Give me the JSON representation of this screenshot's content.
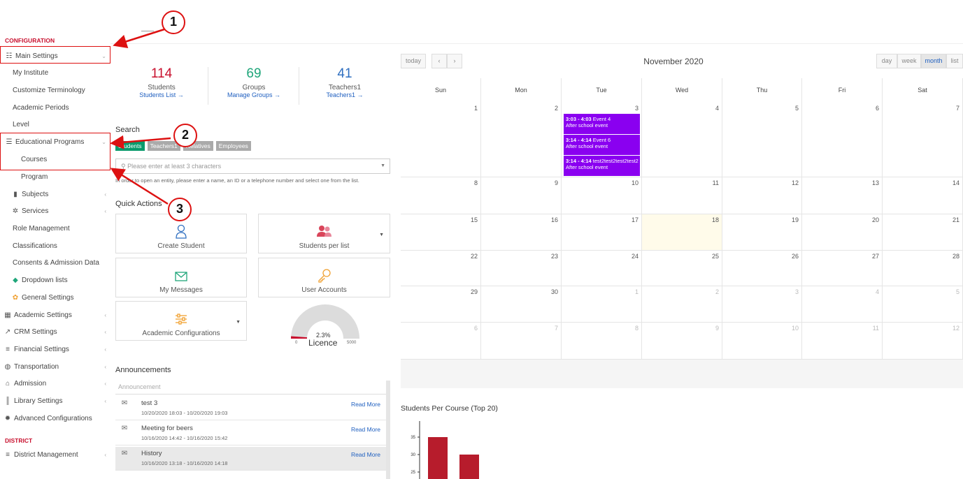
{
  "sidebar": {
    "section_config": "CONFIGURATION",
    "items": [
      {
        "label": "Main Settings",
        "icon": "sliders-icon"
      },
      {
        "label": "My Institute"
      },
      {
        "label": "Customize Terminology"
      },
      {
        "label": "Academic Periods"
      },
      {
        "label": "Level"
      },
      {
        "label": "Educational Programs",
        "icon": "list-icon"
      },
      {
        "label": "Courses"
      },
      {
        "label": "Program"
      },
      {
        "label": "Subjects",
        "icon": "books-icon"
      },
      {
        "label": "Services",
        "icon": "services-icon"
      },
      {
        "label": "Role Management"
      },
      {
        "label": "Classifications"
      },
      {
        "label": "Consents & Admission Data"
      },
      {
        "label": "Dropdown lists",
        "icon": "layers-icon"
      },
      {
        "label": "General Settings",
        "icon": "gears-icon"
      },
      {
        "label": "Academic Settings",
        "icon": "school-icon"
      },
      {
        "label": "CRM Settings",
        "icon": "crm-icon"
      },
      {
        "label": "Financial Settings",
        "icon": "coins-icon"
      },
      {
        "label": "Transportation",
        "icon": "bus-icon"
      },
      {
        "label": "Admission",
        "icon": "building-icon"
      },
      {
        "label": "Library Settings",
        "icon": "library-icon"
      },
      {
        "label": "Advanced Configurations",
        "icon": "cogs-icon"
      },
      {
        "label": "District Management",
        "icon": "menu-icon"
      }
    ],
    "section_district": "DISTRICT"
  },
  "stats": [
    {
      "value": "114",
      "label": "Students",
      "link": "Students List →",
      "color": "#c8102e"
    },
    {
      "value": "69",
      "label": "Groups",
      "link": "Manage Groups →",
      "color": "#1fa67a"
    },
    {
      "value": "41",
      "label": "Teachers1",
      "link": "Teachers1 →",
      "color": "#2f6fc0"
    }
  ],
  "search": {
    "heading": "Search",
    "tabs": [
      "Students",
      "Teachers1",
      "Relatives",
      "Employees"
    ],
    "placeholder": "Please enter at least 3 characters",
    "hint": "In order to open an entity, please enter a name, an ID or a telephone number and select one from the list."
  },
  "quick_actions": {
    "heading": "Quick Actions",
    "items": [
      "Create Student",
      "Students per list",
      "My Messages",
      "User Accounts",
      "Academic Configurations"
    ]
  },
  "gauge": {
    "percent": "2.3%",
    "label": "Licence",
    "min": "0",
    "max": "5000",
    "fraction": 0.023
  },
  "announcements": {
    "heading": "Announcements",
    "column": "Announcement",
    "read_more": "Read More",
    "items": [
      {
        "title": "test 3",
        "dates": "10/20/2020 18:03 - 10/20/2020 19:03"
      },
      {
        "title": "Meeting for beers",
        "dates": "10/16/2020 14:42 - 10/16/2020 15:42"
      },
      {
        "title": "History",
        "dates": "10/16/2020 13:18 - 10/16/2020 14:18"
      }
    ]
  },
  "calendar": {
    "title": "November 2020",
    "today": "today",
    "prev": "‹",
    "next": "›",
    "views": [
      "day",
      "week",
      "month",
      "list"
    ],
    "active_view": "month",
    "days": [
      "Sun",
      "Mon",
      "Tue",
      "Wed",
      "Thu",
      "Fri",
      "Sat"
    ],
    "weeks": [
      [
        "1",
        "2",
        "3",
        "4",
        "5",
        "6",
        "7"
      ],
      [
        "8",
        "9",
        "10",
        "11",
        "12",
        "13",
        "14"
      ],
      [
        "15",
        "16",
        "17",
        "18",
        "19",
        "20",
        "21"
      ],
      [
        "22",
        "23",
        "24",
        "25",
        "26",
        "27",
        "28"
      ],
      [
        "29",
        "30",
        "1",
        "2",
        "3",
        "4",
        "5"
      ],
      [
        "6",
        "7",
        "8",
        "9",
        "10",
        "11",
        "12"
      ]
    ],
    "events": [
      {
        "time": "3:03 - 4:03",
        "title": "Event 4",
        "sub": "After school event"
      },
      {
        "time": "3:14 - 4:14",
        "title": "Event 6",
        "sub": "After school event"
      },
      {
        "time": "3:14 - 4:14",
        "title": "test2test2test2test2",
        "sub": "After school event"
      }
    ]
  },
  "chart_data": {
    "type": "bar",
    "title": "Students Per Course (Top 20)",
    "yticks": [
      "35",
      "30",
      "25"
    ],
    "values": [
      35,
      30
    ],
    "ylim": [
      23,
      39
    ]
  },
  "annotations": [
    "1",
    "2",
    "3"
  ],
  "colors": {
    "accent_red": "#c8102e",
    "event": "#8a00f0",
    "bar": "#b71c2c",
    "tab_active": "#0a9a6c"
  }
}
